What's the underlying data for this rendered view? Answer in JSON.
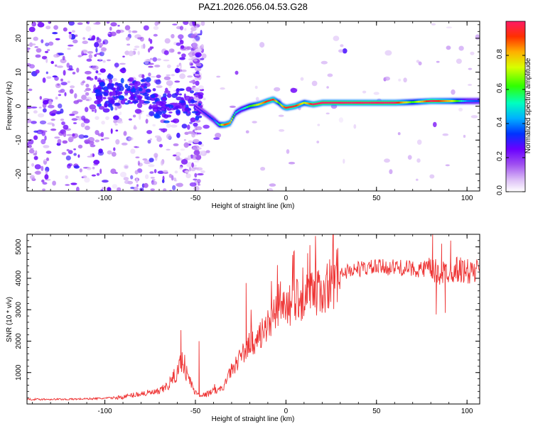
{
  "title": "PAZ1.2026.056.04.53.G28",
  "chart_data": [
    {
      "type": "heatmap",
      "xlabel": "Height of straight line (km)",
      "ylabel": "Frequency (Hz)",
      "xlim": [
        -143,
        107
      ],
      "ylim": [
        -25,
        25
      ],
      "x_ticks": [
        "-100",
        "-50",
        "0",
        "50",
        "100"
      ],
      "x_tick_values": [
        -100,
        -50,
        0,
        50,
        100
      ],
      "y_ticks": [
        "20",
        "10",
        "0",
        "-10",
        "-20"
      ],
      "y_tick_values": [
        20,
        10,
        0,
        -10,
        -20
      ],
      "colorbar": {
        "label": "Normalized spectral amplitude",
        "range": [
          0,
          1
        ],
        "ticks": [
          "0.0",
          "0.2",
          "0.4",
          "0.6",
          "0.8"
        ],
        "tick_values": [
          0.0,
          0.2,
          0.4,
          0.6,
          0.8
        ]
      },
      "ridge": {
        "x": [
          -50,
          -45,
          -40,
          -37,
          -34,
          -31,
          -28,
          -25,
          -20,
          -15,
          -10,
          -7,
          -4,
          -2,
          0,
          5,
          10,
          15,
          20,
          40,
          60,
          70,
          80,
          90,
          100,
          107
        ],
        "frequency": [
          0,
          -2,
          -4,
          -5.5,
          -5.5,
          -5,
          -2,
          -1,
          0,
          0.5,
          1.5,
          2,
          1,
          0,
          -0.5,
          0,
          1,
          0.5,
          1,
          1,
          1,
          1.2,
          1.5,
          1.5,
          1.5,
          1.5
        ],
        "amplitude": [
          0.25,
          0.3,
          0.35,
          0.55,
          0.9,
          0.85,
          0.5,
          0.45,
          0.6,
          0.75,
          0.95,
          0.95,
          0.6,
          0.8,
          0.95,
          0.95,
          0.7,
          1.0,
          1.0,
          1.0,
          1.0,
          0.6,
          1.0,
          0.8,
          0.4,
          0.35
        ]
      }
    },
    {
      "type": "line",
      "xlabel": "Height of straight line (km)",
      "ylabel": "SNR (10 * v/v)",
      "xlim": [
        -143,
        107
      ],
      "ylim": [
        0,
        5400
      ],
      "x_ticks": [
        "-100",
        "-50",
        "0",
        "50",
        "100"
      ],
      "x_tick_values": [
        -100,
        -50,
        0,
        50,
        100
      ],
      "y_ticks": [
        "1000",
        "2000",
        "3000",
        "4000",
        "5000"
      ],
      "y_tick_values": [
        1000,
        2000,
        3000,
        4000,
        5000
      ],
      "series": [
        {
          "name": "SNR",
          "color": "#ee3333",
          "x": [
            -143,
            -120,
            -100,
            -90,
            -80,
            -70,
            -65,
            -60,
            -57,
            -55,
            -52,
            -50,
            -47,
            -45,
            -40,
            -35,
            -33,
            -30,
            -25,
            -20,
            -15,
            -10,
            -5,
            0,
            5,
            10,
            15,
            20,
            25,
            30,
            35,
            40,
            50,
            60,
            70,
            80,
            85,
            90,
            95,
            100,
            107
          ],
          "y": [
            150,
            150,
            180,
            220,
            330,
            380,
            600,
            1000,
            1500,
            1000,
            600,
            350,
            300,
            280,
            400,
            500,
            700,
            1100,
            1500,
            1900,
            2100,
            2450,
            2900,
            3100,
            3300,
            3400,
            3500,
            3600,
            3900,
            4150,
            4250,
            4300,
            4350,
            4350,
            4300,
            4250,
            4150,
            4250,
            4300,
            4200,
            4200
          ]
        }
      ],
      "spikes": {
        "x": [
          -58,
          -48,
          -22,
          -3,
          12,
          81,
          83,
          86,
          88,
          91,
          93
        ],
        "y": [
          2350,
          2000,
          3850,
          3900,
          4800,
          5400,
          2850,
          5100,
          2900,
          5200,
          4400
        ]
      }
    }
  ]
}
